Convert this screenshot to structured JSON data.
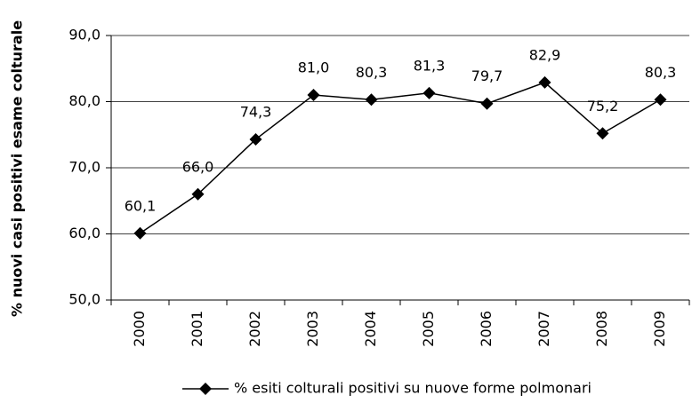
{
  "chart_data": {
    "type": "line",
    "y_label": "% nuovi casi positivi esame colturale",
    "categories": [
      "2000",
      "2001",
      "2002",
      "2003",
      "2004",
      "2005",
      "2006",
      "2007",
      "2008",
      "2009"
    ],
    "series": [
      {
        "name": "% esiti colturali positivi su nuove forme polmonari",
        "color": "#000000",
        "values": [
          60.1,
          66.0,
          74.3,
          81.0,
          80.3,
          81.3,
          79.7,
          82.9,
          75.2,
          80.3
        ],
        "value_labels": [
          "60,1",
          "66,0",
          "74,3",
          "81,0",
          "80,3",
          "81,3",
          "79,7",
          "82,9",
          "75,2",
          "80,3"
        ]
      }
    ],
    "ylim": [
      50,
      90
    ],
    "yticks": [
      {
        "value": 50,
        "label": "50,0"
      },
      {
        "value": 60,
        "label": "60,0"
      },
      {
        "value": 70,
        "label": "70,0"
      },
      {
        "value": 80,
        "label": "80,0"
      },
      {
        "value": 90,
        "label": "90,0"
      }
    ],
    "grid": true,
    "legend": "bottom"
  }
}
